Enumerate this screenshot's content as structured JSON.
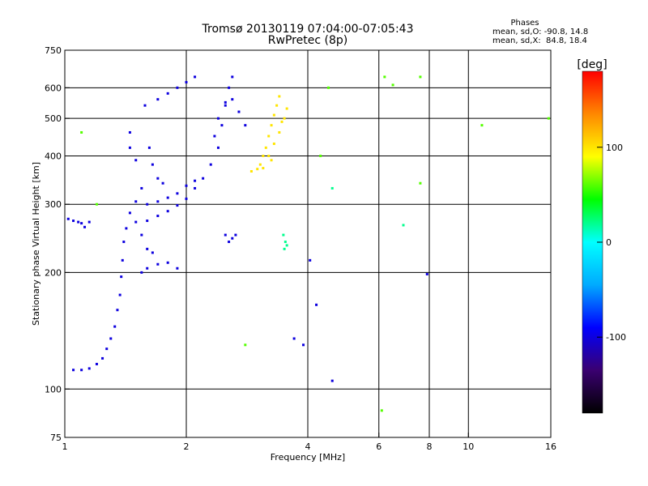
{
  "chart_data": {
    "type": "scatter",
    "title": "Tromsø 20130119 07:04:00-07:05:43",
    "subtitle": "RwPretec (8p)",
    "xlabel": "Frequency [MHz]",
    "ylabel": "Stationary phase Virtual Height [km]",
    "x_scale": "log",
    "y_scale": "log",
    "xlim": [
      1,
      16
    ],
    "ylim": [
      75,
      750
    ],
    "x_ticks": [
      1,
      2,
      4,
      6,
      8,
      10,
      16
    ],
    "x_tick_labels": [
      "1",
      "2",
      "4",
      "6",
      "8",
      "10",
      "16"
    ],
    "y_ticks": [
      75,
      100,
      200,
      300,
      400,
      500,
      600,
      750
    ],
    "y_tick_labels": [
      "75",
      "100",
      "200",
      "300",
      "400",
      "500",
      "600",
      "750"
    ],
    "x_gridlines": [
      2,
      4,
      6,
      8,
      10
    ],
    "y_gridlines": [
      100,
      200,
      300,
      400,
      500,
      600
    ],
    "grid": true,
    "stats": {
      "heading": "Phases",
      "line1": "mean, sd,O: -90.8, 14.8",
      "line2": "mean, sd,X:  84.8, 18.4"
    },
    "colorbar": {
      "label": "[deg]",
      "range": [
        -180,
        180
      ],
      "ticks": [
        100,
        0,
        -100
      ],
      "tick_labels": [
        "100",
        "0",
        "-100"
      ],
      "colors": [
        "#000000",
        "#3a0070",
        "#0000ff",
        "#00aaff",
        "#00ffff",
        "#00ff00",
        "#ffff00",
        "#ff8800",
        "#ff0000"
      ]
    },
    "series": [
      {
        "values_desc": "blue_phase_points",
        "phase": -100,
        "points": [
          [
            1.02,
            275
          ],
          [
            1.05,
            272
          ],
          [
            1.08,
            270
          ],
          [
            1.1,
            268
          ],
          [
            1.12,
            262
          ],
          [
            1.15,
            270
          ],
          [
            1.05,
            112
          ],
          [
            1.1,
            112
          ],
          [
            1.15,
            113
          ],
          [
            1.2,
            116
          ],
          [
            1.24,
            120
          ],
          [
            1.27,
            127
          ],
          [
            1.3,
            135
          ],
          [
            1.33,
            145
          ],
          [
            1.35,
            160
          ],
          [
            1.37,
            175
          ],
          [
            1.38,
            195
          ],
          [
            1.39,
            215
          ],
          [
            1.4,
            240
          ],
          [
            1.42,
            260
          ],
          [
            1.45,
            285
          ],
          [
            1.5,
            305
          ],
          [
            1.55,
            330
          ],
          [
            1.5,
            270
          ],
          [
            1.6,
            272
          ],
          [
            1.7,
            280
          ],
          [
            1.8,
            288
          ],
          [
            1.9,
            298
          ],
          [
            2.0,
            310
          ],
          [
            2.1,
            330
          ],
          [
            2.2,
            350
          ],
          [
            2.3,
            380
          ],
          [
            2.4,
            420
          ],
          [
            2.45,
            480
          ],
          [
            2.5,
            540
          ],
          [
            2.55,
            600
          ],
          [
            2.6,
            640
          ],
          [
            1.6,
            300
          ],
          [
            1.7,
            305
          ],
          [
            1.8,
            312
          ],
          [
            1.9,
            320
          ],
          [
            2.0,
            335
          ],
          [
            2.1,
            345
          ],
          [
            1.55,
            200
          ],
          [
            1.6,
            205
          ],
          [
            1.7,
            210
          ],
          [
            1.8,
            212
          ],
          [
            1.9,
            205
          ],
          [
            1.58,
            540
          ],
          [
            1.7,
            560
          ],
          [
            1.8,
            580
          ],
          [
            1.9,
            600
          ],
          [
            2.0,
            620
          ],
          [
            2.1,
            640
          ],
          [
            2.5,
            250
          ],
          [
            2.55,
            240
          ],
          [
            2.6,
            245
          ],
          [
            2.65,
            250
          ],
          [
            2.35,
            450
          ],
          [
            2.4,
            500
          ],
          [
            2.5,
            550
          ],
          [
            2.6,
            560
          ],
          [
            2.7,
            520
          ],
          [
            2.8,
            480
          ],
          [
            1.62,
            420
          ],
          [
            1.65,
            380
          ],
          [
            1.7,
            350
          ],
          [
            1.75,
            340
          ],
          [
            1.45,
            420
          ],
          [
            1.45,
            460
          ],
          [
            1.5,
            390
          ],
          [
            1.55,
            250
          ],
          [
            1.6,
            230
          ],
          [
            1.65,
            225
          ],
          [
            4.6,
            105
          ],
          [
            3.9,
            130
          ],
          [
            4.2,
            165
          ],
          [
            3.7,
            135
          ],
          [
            7.9,
            198
          ],
          [
            4.05,
            215
          ]
        ]
      },
      {
        "values_desc": "yellow_phase_points",
        "phase": 100,
        "points": [
          [
            2.9,
            365
          ],
          [
            3.0,
            370
          ],
          [
            3.05,
            380
          ],
          [
            3.1,
            400
          ],
          [
            3.15,
            420
          ],
          [
            3.2,
            450
          ],
          [
            3.25,
            480
          ],
          [
            3.3,
            510
          ],
          [
            3.35,
            540
          ],
          [
            3.4,
            570
          ],
          [
            3.2,
            400
          ],
          [
            3.3,
            430
          ],
          [
            3.4,
            460
          ],
          [
            3.5,
            500
          ],
          [
            3.55,
            530
          ],
          [
            3.45,
            490
          ],
          [
            3.25,
            390
          ],
          [
            3.1,
            372
          ]
        ]
      },
      {
        "values_desc": "green_phase_points",
        "phase": 20,
        "points": [
          [
            3.5,
            230
          ],
          [
            3.52,
            240
          ],
          [
            3.55,
            235
          ],
          [
            3.48,
            250
          ],
          [
            6.9,
            265
          ],
          [
            4.6,
            330
          ]
        ]
      },
      {
        "values_desc": "scattered_phase_points",
        "phase": 60,
        "points": [
          [
            6.2,
            640
          ],
          [
            6.5,
            610
          ],
          [
            7.6,
            640
          ],
          [
            10.8,
            480
          ],
          [
            15.8,
            500
          ],
          [
            6.1,
            88
          ],
          [
            2.8,
            130
          ],
          [
            4.3,
            400
          ],
          [
            4.5,
            600
          ],
          [
            7.6,
            340
          ],
          [
            1.1,
            460
          ],
          [
            1.2,
            300
          ]
        ]
      }
    ]
  }
}
